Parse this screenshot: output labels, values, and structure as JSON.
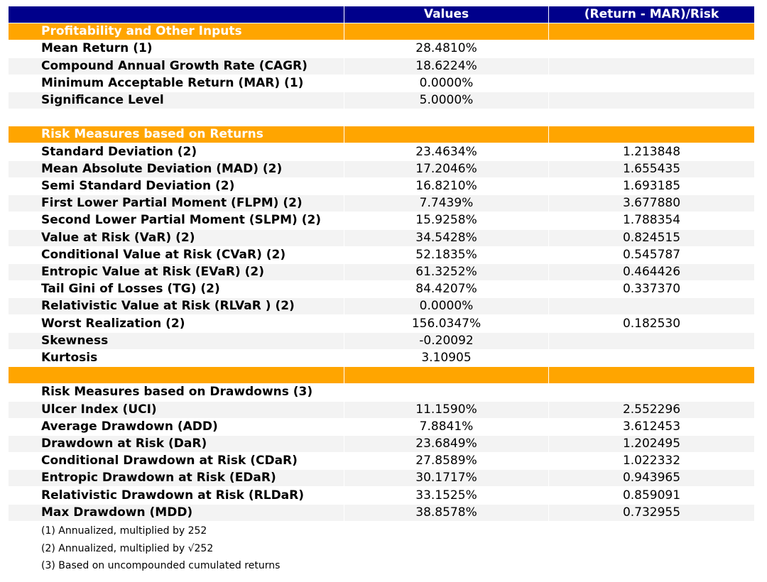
{
  "table": {
    "header": [
      "Values",
      "(Return - MAR)/Risk"
    ],
    "sections": [
      {
        "title": "Profitability and Other Inputs",
        "rows": [
          [
            "Mean Return (1)",
            "28.4810%",
            null
          ],
          [
            "Compound Annual Growth Rate (CAGR)",
            "18.6224%",
            null
          ],
          [
            "Minimum Acceptable Return (MAR) (1)",
            "0.0000%",
            null
          ],
          [
            "Significance Level",
            "5.0000%",
            null
          ]
        ]
      },
      {
        "title": "Risk Measures based on Returns",
        "rows": [
          [
            "Standard Deviation (2)",
            "23.4634%",
            "1.213848"
          ],
          [
            "Mean Absolute Deviation (MAD) (2)",
            "17.2046%",
            "1.655435"
          ],
          [
            "Semi Standard Deviation (2)",
            "16.8210%",
            "1.693185"
          ],
          [
            "First Lower Partial Moment (FLPM) (2)",
            "7.7439%",
            "3.677880"
          ],
          [
            "Second Lower Partial Moment (SLPM) (2)",
            "15.9258%",
            "1.788354"
          ],
          [
            "Value at Risk (VaR) (2)",
            "34.5428%",
            "0.824515"
          ],
          [
            "Conditional Value at Risk (CVaR) (2)",
            "52.1835%",
            "0.545787"
          ],
          [
            "Entropic Value at Risk (EVaR) (2)",
            "61.3252%",
            "0.464426"
          ],
          [
            "Tail Gini of Losses (TG) (2)",
            "84.4207%",
            "0.337370"
          ],
          [
            "Relativistic Value at Risk (RLVaR ) (2)",
            "0.0000%",
            null
          ],
          [
            "Worst Realization (2)",
            "156.0347%",
            "0.182530"
          ],
          [
            "Skewness",
            "-0.20092",
            null
          ],
          [
            "Kurtosis",
            "3.10905",
            null
          ]
        ]
      },
      {
        "title": "Risk Measures based on Drawdowns (3)",
        "rows": [
          [
            "Ulcer Index (UCI)",
            "11.1590%",
            "2.552296"
          ],
          [
            "Average Drawdown (ADD)",
            "7.8841%",
            "3.612453"
          ],
          [
            "Drawdown at Risk (DaR)",
            "23.6849%",
            "1.202495"
          ],
          [
            "Conditional Drawdown at Risk (CDaR)",
            "27.8589%",
            "1.022332"
          ],
          [
            "Entropic Drawdown at Risk (EDaR)",
            "30.1717%",
            "0.943965"
          ],
          [
            "Relativistic Drawdown at Risk (RLDaR)",
            "33.1525%",
            "0.859091"
          ],
          [
            "Max Drawdown (MDD)",
            "38.8578%",
            "0.732955"
          ]
        ]
      }
    ],
    "footnotes": [
      "(1) Annualized, multiplied by 252",
      "(2) Annualized, multiplied by √252",
      "(3) Based on uncompounded cumulated returns"
    ]
  }
}
